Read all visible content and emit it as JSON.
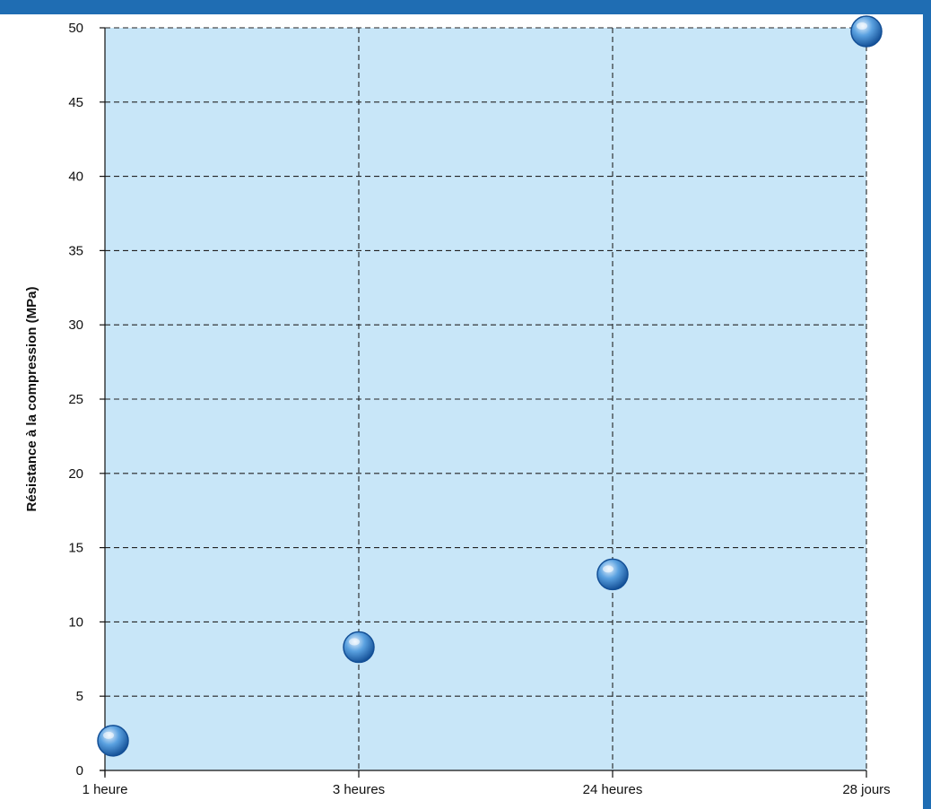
{
  "colors": {
    "frame": "#1f6db3",
    "plot_fill": "#c8e6f8",
    "grid": "#222222",
    "axis": "#111111",
    "marker_light": "#e4f1fd",
    "marker_mid": "#5aa1e0",
    "marker_dark": "#134f96"
  },
  "chart_data": {
    "type": "scatter",
    "title": "",
    "xlabel": "",
    "ylabel": "Résistance à la compression (MPa)",
    "categories": [
      "1 heure",
      "3 heures",
      "24 heures",
      "28 jours"
    ],
    "values": [
      2,
      8.3,
      13.2,
      50
    ],
    "ylim": [
      0,
      50
    ],
    "yticks": [
      0,
      5,
      10,
      15,
      20,
      25,
      30,
      35,
      40,
      45,
      50
    ],
    "grid": true,
    "grid_style": "dashed",
    "legend": "none",
    "marker": "sphere"
  }
}
